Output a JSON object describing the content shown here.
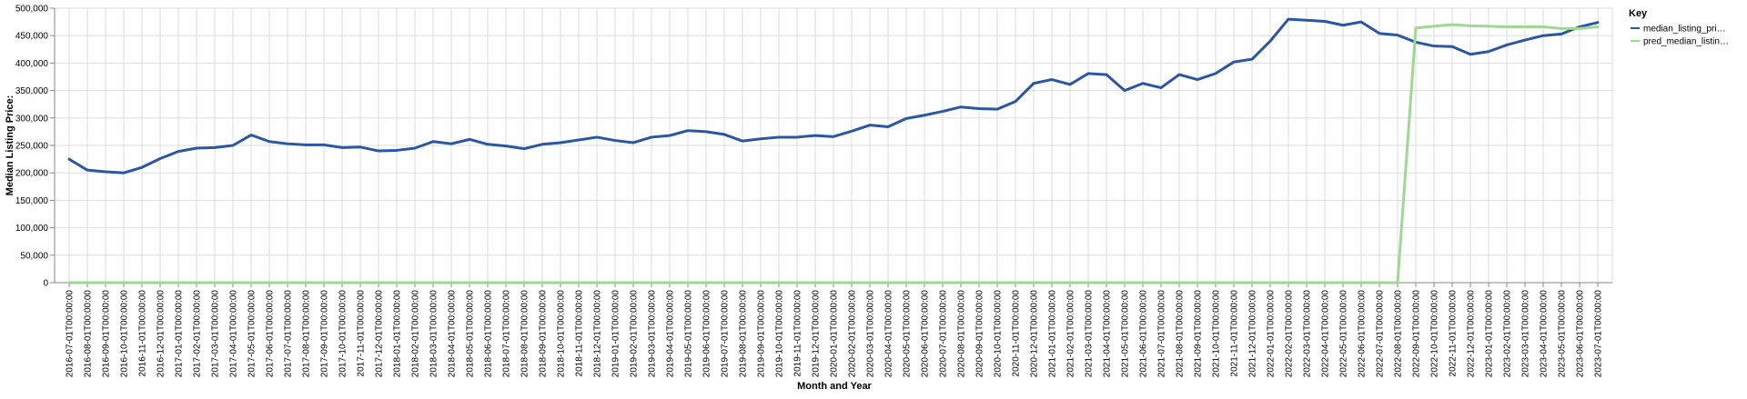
{
  "chart_data": {
    "type": "line",
    "title": "",
    "xlabel": "Month and Year",
    "ylabel": "Median Listing Price:",
    "ylim": [
      0,
      500000
    ],
    "y_ticks": [
      0,
      50000,
      100000,
      150000,
      200000,
      250000,
      300000,
      350000,
      400000,
      450000,
      500000
    ],
    "y_tick_labels": [
      "0",
      "50,000",
      "100,000",
      "150,000",
      "200,000",
      "250,000",
      "300,000",
      "350,000",
      "400,000",
      "450,000",
      "500,000"
    ],
    "grid": true,
    "legend": {
      "title": "Key",
      "position": "top-right",
      "items": [
        {
          "label": "median_listing_pri…",
          "color": "#2a56a2"
        },
        {
          "label": "pred_median_listin…",
          "color": "#9ed993"
        }
      ]
    },
    "x": [
      "2016-07-01T00:00:00",
      "2016-08-01T00:00:00",
      "2016-09-01T00:00:00",
      "2016-10-01T00:00:00",
      "2016-11-01T00:00:00",
      "2016-12-01T00:00:00",
      "2017-01-01T00:00:00",
      "2017-02-01T00:00:00",
      "2017-03-01T00:00:00",
      "2017-04-01T00:00:00",
      "2017-05-01T00:00:00",
      "2017-06-01T00:00:00",
      "2017-07-01T00:00:00",
      "2017-08-01T00:00:00",
      "2017-09-01T00:00:00",
      "2017-10-01T00:00:00",
      "2017-11-01T00:00:00",
      "2017-12-01T00:00:00",
      "2018-01-01T00:00:00",
      "2018-02-01T00:00:00",
      "2018-03-01T00:00:00",
      "2018-04-01T00:00:00",
      "2018-05-01T00:00:00",
      "2018-06-01T00:00:00",
      "2018-07-01T00:00:00",
      "2018-08-01T00:00:00",
      "2018-09-01T00:00:00",
      "2018-10-01T00:00:00",
      "2018-11-01T00:00:00",
      "2018-12-01T00:00:00",
      "2019-01-01T00:00:00",
      "2019-02-01T00:00:00",
      "2019-03-01T00:00:00",
      "2019-04-01T00:00:00",
      "2019-05-01T00:00:00",
      "2019-06-01T00:00:00",
      "2019-07-01T00:00:00",
      "2019-08-01T00:00:00",
      "2019-09-01T00:00:00",
      "2019-10-01T00:00:00",
      "2019-11-01T00:00:00",
      "2019-12-01T00:00:00",
      "2020-01-01T00:00:00",
      "2020-02-01T00:00:00",
      "2020-03-01T00:00:00",
      "2020-04-01T00:00:00",
      "2020-05-01T00:00:00",
      "2020-06-01T00:00:00",
      "2020-07-01T00:00:00",
      "2020-08-01T00:00:00",
      "2020-09-01T00:00:00",
      "2020-10-01T00:00:00",
      "2020-11-01T00:00:00",
      "2020-12-01T00:00:00",
      "2021-01-01T00:00:00",
      "2021-02-01T00:00:00",
      "2021-03-01T00:00:00",
      "2021-04-01T00:00:00",
      "2021-05-01T00:00:00",
      "2021-06-01T00:00:00",
      "2021-07-01T00:00:00",
      "2021-08-01T00:00:00",
      "2021-09-01T00:00:00",
      "2021-10-01T00:00:00",
      "2021-11-01T00:00:00",
      "2021-12-01T00:00:00",
      "2022-01-01T00:00:00",
      "2022-02-01T00:00:00",
      "2022-03-01T00:00:00",
      "2022-04-01T00:00:00",
      "2022-05-01T00:00:00",
      "2022-06-01T00:00:00",
      "2022-07-01T00:00:00",
      "2022-08-01T00:00:00",
      "2022-09-01T00:00:00",
      "2022-10-01T00:00:00",
      "2022-11-01T00:00:00",
      "2022-12-01T00:00:00",
      "2023-01-01T00:00:00",
      "2023-02-01T00:00:00",
      "2023-03-01T00:00:00",
      "2023-04-01T00:00:00",
      "2023-05-01T00:00:00",
      "2023-06-01T00:00:00",
      "2023-07-01T00:00:00"
    ],
    "series": [
      {
        "name": "median_listing_pri…",
        "color": "#2a56a2",
        "values": [
          225000,
          205000,
          202000,
          200000,
          210000,
          226000,
          239000,
          245000,
          246000,
          250000,
          269000,
          257000,
          253000,
          251000,
          251000,
          246000,
          247000,
          240000,
          241000,
          245000,
          257000,
          253000,
          261000,
          252000,
          249000,
          244000,
          252000,
          255000,
          260000,
          265000,
          259000,
          255000,
          265000,
          268000,
          277000,
          275000,
          270000,
          258000,
          262000,
          265000,
          265000,
          268000,
          266000,
          276000,
          287000,
          284000,
          299000,
          305000,
          312000,
          320000,
          317000,
          316000,
          330000,
          363000,
          370000,
          361000,
          381000,
          379000,
          350000,
          363000,
          355000,
          379000,
          370000,
          381000,
          402000,
          407000,
          440000,
          480000,
          478000,
          476000,
          469000,
          475000,
          454000,
          451000,
          438000,
          431000,
          430000,
          416000,
          421000,
          433000,
          442000,
          450000,
          453000,
          466000,
          474000
        ]
      },
      {
        "name": "pred_median_listin…",
        "color": "#9ed993",
        "values": [
          0,
          0,
          0,
          0,
          0,
          0,
          0,
          0,
          0,
          0,
          0,
          0,
          0,
          0,
          0,
          0,
          0,
          0,
          0,
          0,
          0,
          0,
          0,
          0,
          0,
          0,
          0,
          0,
          0,
          0,
          0,
          0,
          0,
          0,
          0,
          0,
          0,
          0,
          0,
          0,
          0,
          0,
          0,
          0,
          0,
          0,
          0,
          0,
          0,
          0,
          0,
          0,
          0,
          0,
          0,
          0,
          0,
          0,
          0,
          0,
          0,
          0,
          0,
          0,
          0,
          0,
          0,
          0,
          0,
          0,
          0,
          0,
          0,
          0,
          464000,
          467000,
          470000,
          468000,
          467000,
          466000,
          466000,
          466000,
          463000,
          463000,
          466000
        ]
      }
    ]
  }
}
